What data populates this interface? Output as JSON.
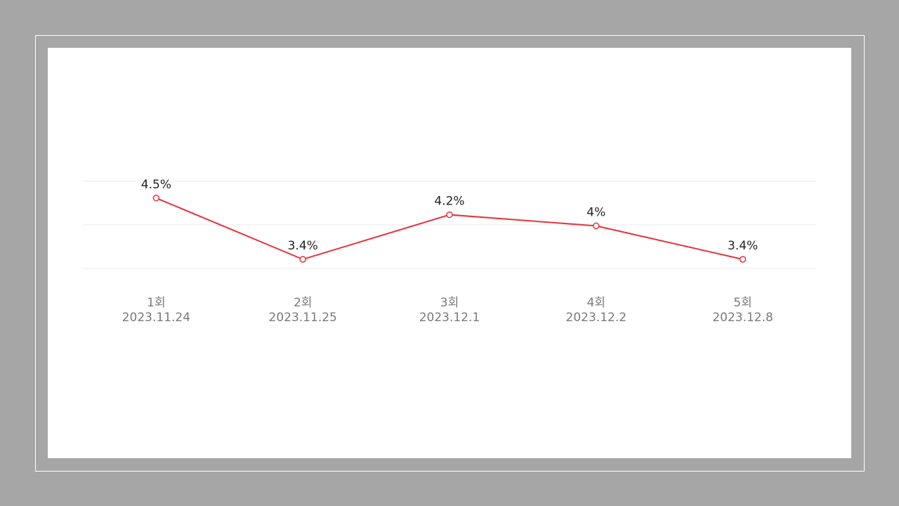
{
  "chart_data": {
    "type": "line",
    "categories": [
      {
        "round": "1회",
        "date": "2023.11.24"
      },
      {
        "round": "2회",
        "date": "2023.11.25"
      },
      {
        "round": "3회",
        "date": "2023.12.1"
      },
      {
        "round": "4회",
        "date": "2023.12.2"
      },
      {
        "round": "5회",
        "date": "2023.12.8"
      }
    ],
    "series": [
      {
        "values": [
          4.5,
          3.4,
          4.2,
          4,
          3.4
        ],
        "labels": [
          "4.5%",
          "3.4%",
          "4.2%",
          "4%",
          "3.4%"
        ],
        "color": "#e8323c"
      }
    ],
    "ylim": [
      3.4,
      4.8
    ],
    "grid": true,
    "legend": "none"
  }
}
